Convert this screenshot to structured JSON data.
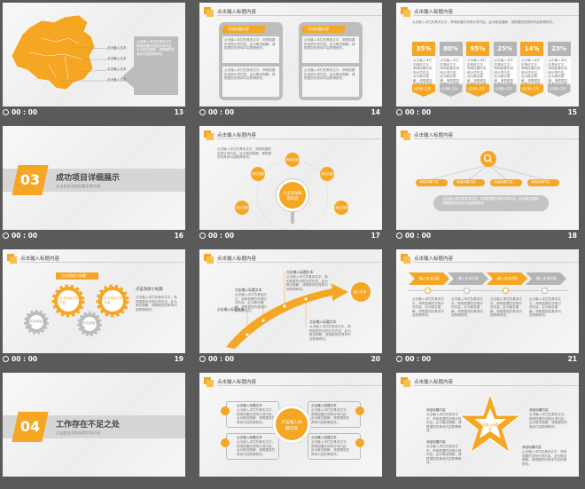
{
  "common": {
    "time": "00 : 00",
    "header_title": "点击输入标题内容",
    "body_text": "点击输入本栏的具体文字，简明扼要的说明分项内容，此为概念图解，请根据您的具体内容酌情修改。"
  },
  "slides": [
    {
      "num": "13",
      "map_labels": [
        "点击输入文本",
        "点击输入文本",
        "点击输入文本",
        "点击输入文本"
      ]
    },
    {
      "num": "14",
      "title": "点击输入标题内容",
      "tags": [
        "添加标题内容",
        "添加标题内容"
      ]
    },
    {
      "num": "15",
      "title": "点击输入标题内容",
      "percents": [
        "35%",
        "80%",
        "95%",
        "25%",
        "14%",
        "23%"
      ],
      "tag": "点击输入文本"
    },
    {
      "num": "16",
      "section_num": "03",
      "section_title": "成功项目详细展示",
      "section_sub": "点击此处添加标题文本内容"
    },
    {
      "num": "17",
      "title": "点击输入标题内容",
      "center": "点击添加标题内容",
      "node": "添加关键字"
    },
    {
      "num": "18",
      "title": "点击输入标题内容",
      "node": "添加标题内容"
    },
    {
      "num": "19",
      "title": "点击输入标题内容",
      "banner": "点击添加小标题",
      "gear_label": "点击添加文本内容",
      "side_title": "点击添加小标题",
      "gear_small": "点击添加文本"
    },
    {
      "num": "20",
      "title": "点击输入标题内容",
      "label": "点击输入标题文本",
      "arrow_label": "输入文本"
    },
    {
      "num": "21",
      "title": "点击输入标题内容",
      "chev": "输入文本内容"
    },
    {
      "num": "22",
      "section_num": "04",
      "section_title": "工作存在不足之处",
      "section_sub": "点击此处添加标题文本内容"
    },
    {
      "num": "23",
      "title": "点击输入标题内容",
      "center": "点击输入标题内容",
      "box_title": "点击输入标题文本"
    },
    {
      "num": "24",
      "title": "点击输入标题内容",
      "star_center": "点击输入标题内容",
      "label": "添加标题内容"
    }
  ],
  "colors": {
    "accent": "#f5a623",
    "gray": "#b5b5b5",
    "bg": "#5a5a5a"
  }
}
